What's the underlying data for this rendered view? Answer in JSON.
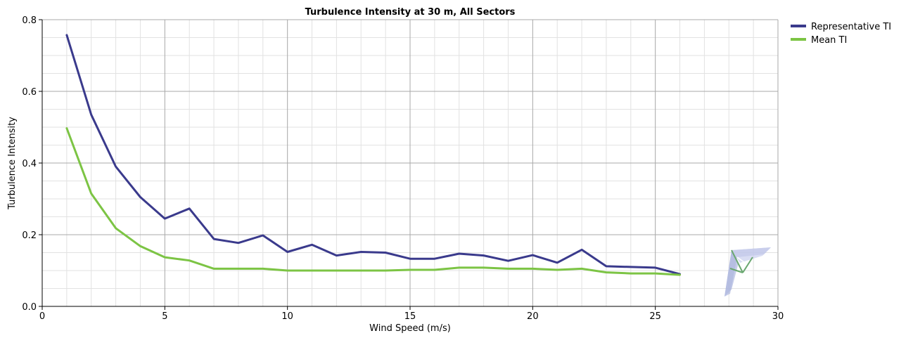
{
  "chart_data": {
    "type": "line",
    "title": "Turbulence Intensity at 30 m, All Sectors",
    "xlabel": "Wind Speed (m/s)",
    "ylabel": "Turbulence Intensity",
    "xlim": [
      0,
      30
    ],
    "ylim": [
      0,
      0.8
    ],
    "x_ticks": [
      0,
      5,
      10,
      15,
      20,
      25,
      30
    ],
    "y_ticks": [
      0.0,
      0.2,
      0.4,
      0.6,
      0.8
    ],
    "x_tick_labels": [
      "0",
      "5",
      "10",
      "15",
      "20",
      "25",
      "30"
    ],
    "y_tick_labels": [
      "0.0",
      "0.2",
      "0.4",
      "0.6",
      "0.8"
    ],
    "grid": true,
    "legend_position": "top-right",
    "series": [
      {
        "name": "Representative TI",
        "color": "#3a3a8c",
        "x": [
          1,
          2,
          3,
          4,
          5,
          6,
          7,
          8,
          9,
          10,
          11,
          12,
          13,
          14,
          15,
          16,
          17,
          18,
          19,
          20,
          21,
          22,
          23,
          24,
          25,
          26
        ],
        "values": [
          0.757,
          0.535,
          0.39,
          0.305,
          0.245,
          0.273,
          0.188,
          0.177,
          0.198,
          0.152,
          0.172,
          0.142,
          0.152,
          0.15,
          0.133,
          0.133,
          0.147,
          0.142,
          0.127,
          0.143,
          0.122,
          0.158,
          0.112,
          0.11,
          0.108,
          0.09
        ]
      },
      {
        "name": "Mean TI",
        "color": "#7cc444",
        "x": [
          1,
          2,
          3,
          4,
          5,
          6,
          7,
          8,
          9,
          10,
          11,
          12,
          13,
          14,
          15,
          16,
          17,
          18,
          19,
          20,
          21,
          22,
          23,
          24,
          25,
          26
        ],
        "values": [
          0.497,
          0.315,
          0.218,
          0.168,
          0.137,
          0.128,
          0.105,
          0.105,
          0.105,
          0.1,
          0.1,
          0.1,
          0.1,
          0.1,
          0.102,
          0.102,
          0.108,
          0.108,
          0.105,
          0.105,
          0.102,
          0.105,
          0.095,
          0.092,
          0.092,
          0.088
        ]
      }
    ]
  },
  "colors": {
    "grid_major": "#a8a8a8",
    "grid_minor": "#e2e2e2",
    "axis": "#000000"
  },
  "icons": {
    "watermark": "software-logo-icon"
  }
}
